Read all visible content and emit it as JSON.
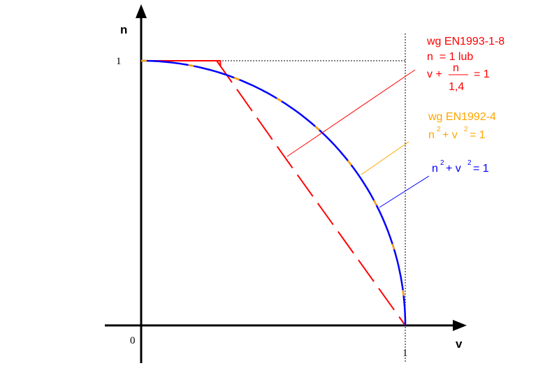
{
  "chart_data": {
    "type": "line",
    "title": "",
    "xlabel": "v",
    "ylabel": "n",
    "xlim": [
      0,
      1
    ],
    "ylim": [
      0,
      1
    ],
    "x_ticks": [
      {
        "value": 0,
        "label": "0"
      },
      {
        "value": 1,
        "label": "1"
      }
    ],
    "y_ticks": [
      {
        "value": 1,
        "label": "1"
      }
    ],
    "origin_label": "0",
    "grid": false,
    "reference_lines": [
      {
        "orientation": "horizontal",
        "value": 1,
        "style": "dotted"
      },
      {
        "orientation": "vertical",
        "value": 1,
        "style": "dotted"
      }
    ],
    "series": [
      {
        "id": "ec3",
        "color": "#ff0000",
        "style": "dashed",
        "points": [
          [
            0,
            1
          ],
          [
            0.3,
            1
          ],
          [
            0.3,
            0.98
          ],
          [
            0.286,
            1
          ],
          [
            0.545,
            0.634
          ],
          [
            1,
            0
          ]
        ]
      },
      {
        "id": "ec2",
        "color": "#ffa500",
        "style": "dashed-overlay",
        "equation": "n^2 + v^2 = 1"
      },
      {
        "id": "circle",
        "color": "#0000ff",
        "style": "solid",
        "equation": "n^2 + v^2 = 1"
      }
    ],
    "annotations": [
      {
        "id": "ec3",
        "color": "#ff0000",
        "lines": [
          "wg EN1993-1-8",
          "n  = 1 lub"
        ],
        "formula": {
          "prefix": "v +",
          "numerator": "n",
          "denominator": "1,4",
          "suffix": "= 1"
        }
      },
      {
        "id": "ec2",
        "color": "#ffa500",
        "lines": [
          "wg EN1992-4"
        ],
        "formula": {
          "n": "n",
          "sup1": "2",
          "plus": "+ v",
          "sup2": "2",
          "eq": "= 1"
        }
      },
      {
        "id": "circle",
        "color": "#0000ff",
        "formula": {
          "n": "n",
          "sup1": "2",
          "plus": "+ v",
          "sup2": "2",
          "eq": "= 1"
        }
      }
    ]
  }
}
